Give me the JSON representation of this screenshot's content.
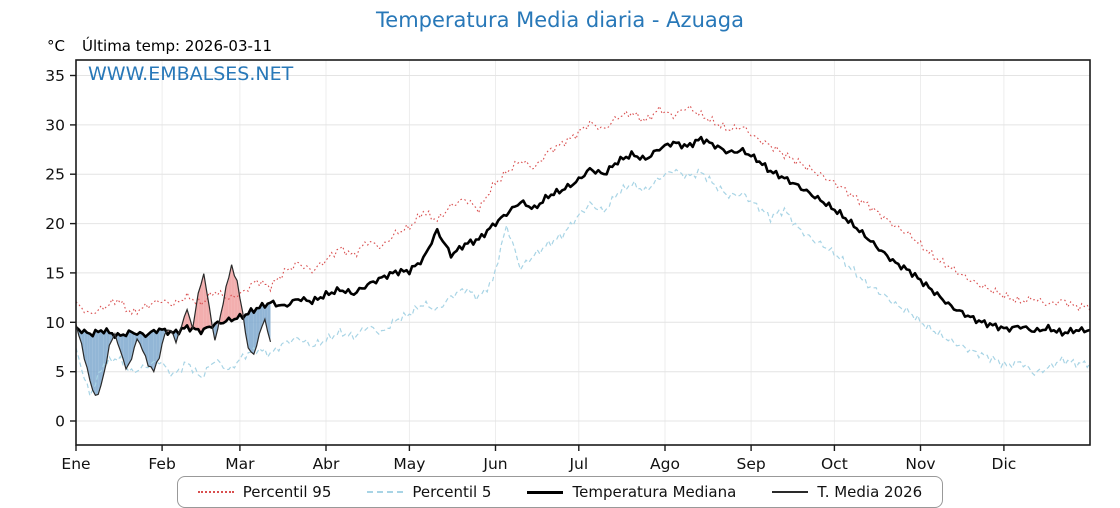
{
  "header": {
    "unit_label": "°C",
    "last_temp_label": "Última temp: 2026-03-11",
    "watermark": "WWW.EMBALSES.NET",
    "accent_color": "#2878b8"
  },
  "chart_data": {
    "type": "line",
    "title": "Temperatura Media diaria - Azuaga",
    "xlabel": "",
    "ylabel": "°C",
    "x_domain_days": [
      0,
      365
    ],
    "ylim": [
      -2.43,
      36.57
    ],
    "y_ticks": [
      0,
      5,
      10,
      15,
      20,
      25,
      30,
      35
    ],
    "x_months": [
      "Ene",
      "Feb",
      "Mar",
      "Abr",
      "May",
      "Jun",
      "Jul",
      "Ago",
      "Sep",
      "Oct",
      "Nov",
      "Dic"
    ],
    "month_start_days": [
      0,
      31,
      59,
      90,
      120,
      151,
      181,
      212,
      243,
      273,
      304,
      334
    ],
    "grid": true,
    "legend_position": "bottom",
    "fill_above_color": "#f0a0a0",
    "fill_below_color": "#7fa9cf",
    "series": [
      {
        "name": "Percentil 95",
        "color": "#d94f4f",
        "style": "dotted",
        "step": 5,
        "end_day": 365,
        "values": [
          11.9,
          10.8,
          11.5,
          12.3,
          10.9,
          11.6,
          12.2,
          11.8,
          12.6,
          11.9,
          13.1,
          12.4,
          13.0,
          14.2,
          13.6,
          15.1,
          16.0,
          15.2,
          16.3,
          17.5,
          16.8,
          18.2,
          17.6,
          19.0,
          19.6,
          21.2,
          20.3,
          21.8,
          22.5,
          21.4,
          23.8,
          25.2,
          26.4,
          25.6,
          27.3,
          28.1,
          29.0,
          30.2,
          29.5,
          30.8,
          31.2,
          30.4,
          31.6,
          30.9,
          31.8,
          31.0,
          30.2,
          29.5,
          29.8,
          28.6,
          27.9,
          27.0,
          26.2,
          25.4,
          24.6,
          23.8,
          22.7,
          21.9,
          20.8,
          19.7,
          18.9,
          17.6,
          16.4,
          15.5,
          14.6,
          13.8,
          13.2,
          12.6,
          12.1,
          12.4,
          11.8,
          12.2,
          11.6
        ]
      },
      {
        "name": "Percentil 5",
        "color": "#a8d4e5",
        "style": "dashed",
        "step": 5,
        "end_day": 365,
        "values": [
          7.2,
          2.6,
          5.8,
          6.4,
          4.9,
          5.5,
          6.1,
          4.6,
          5.9,
          4.4,
          6.2,
          5.1,
          6.5,
          7.3,
          6.8,
          7.9,
          8.4,
          7.6,
          8.2,
          9.0,
          8.5,
          9.6,
          8.9,
          10.2,
          10.8,
          11.9,
          11.2,
          12.6,
          13.4,
          12.5,
          14.2,
          19.8,
          15.5,
          16.8,
          17.9,
          18.8,
          20.5,
          22.0,
          21.2,
          23.1,
          24.0,
          23.3,
          24.6,
          25.4,
          24.8,
          25.2,
          23.9,
          22.8,
          23.0,
          21.8,
          20.6,
          21.4,
          19.5,
          18.4,
          17.6,
          16.5,
          15.2,
          13.8,
          12.9,
          11.8,
          11.0,
          9.8,
          8.9,
          8.1,
          7.4,
          6.8,
          6.3,
          5.6,
          6.0,
          4.8,
          5.4,
          6.2,
          5.8
        ]
      },
      {
        "name": "Temperatura Mediana",
        "color": "#000000",
        "style": "solid-thick",
        "step": 5,
        "end_day": 365,
        "values": [
          9.4,
          8.8,
          9.2,
          8.6,
          9.0,
          8.7,
          9.3,
          8.9,
          9.5,
          9.1,
          9.8,
          10.2,
          10.6,
          11.4,
          12.0,
          11.6,
          12.4,
          12.1,
          12.8,
          13.3,
          12.9,
          13.8,
          14.5,
          15.1,
          15.2,
          16.4,
          19.3,
          16.8,
          17.9,
          18.4,
          19.8,
          21.0,
          22.2,
          21.5,
          22.8,
          23.4,
          24.2,
          25.5,
          25.0,
          26.3,
          27.0,
          26.5,
          27.6,
          28.2,
          27.8,
          28.6,
          27.9,
          27.2,
          27.4,
          26.5,
          25.3,
          24.6,
          23.8,
          22.9,
          22.0,
          21.0,
          19.8,
          18.5,
          17.2,
          16.0,
          15.2,
          14.0,
          12.8,
          11.6,
          10.8,
          10.1,
          9.7,
          9.3,
          9.6,
          9.1,
          9.4,
          8.9,
          9.2
        ]
      },
      {
        "name": "T. Media 2026",
        "color": "#2a2a2a",
        "style": "solid-thin",
        "step": 2,
        "end_day": 70,
        "values": [
          9.6,
          7.8,
          5.2,
          3.1,
          2.5,
          4.8,
          7.5,
          8.9,
          7.0,
          5.4,
          6.2,
          8.5,
          7.1,
          5.8,
          5.0,
          6.6,
          8.8,
          9.4,
          7.9,
          9.8,
          11.2,
          9.5,
          12.8,
          15.0,
          11.4,
          8.2,
          10.5,
          13.6,
          15.6,
          14.2,
          10.8,
          7.4,
          6.6,
          8.9,
          10.2,
          8.1
        ]
      }
    ]
  },
  "legend": {
    "items": [
      {
        "label": "Percentil 95"
      },
      {
        "label": "Percentil 5"
      },
      {
        "label": "Temperatura Mediana"
      },
      {
        "label": "T. Media 2026"
      }
    ]
  }
}
